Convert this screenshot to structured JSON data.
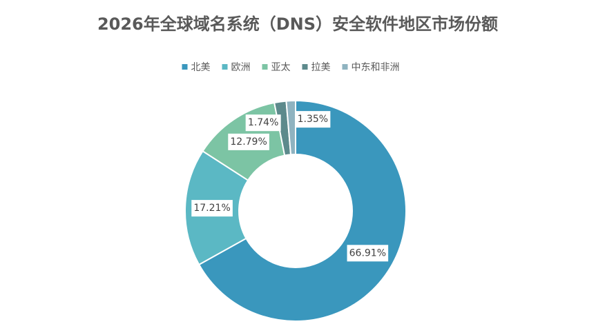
{
  "chart_data": {
    "type": "donut",
    "title": "2026年全球域名系统（DNS）安全软件地区市场份额",
    "categories": [
      "北美",
      "欧洲",
      "亚太",
      "拉美",
      "中东和非洲"
    ],
    "values": [
      66.91,
      17.21,
      12.79,
      1.74,
      1.35
    ],
    "value_labels": [
      "66.91%",
      "17.21%",
      "12.79%",
      "1.74%",
      "1.35%"
    ],
    "colors": [
      "#3a97bd",
      "#5bb8c4",
      "#7cc4a4",
      "#5d8a8c",
      "#8fb3c0"
    ],
    "legend": "top"
  }
}
